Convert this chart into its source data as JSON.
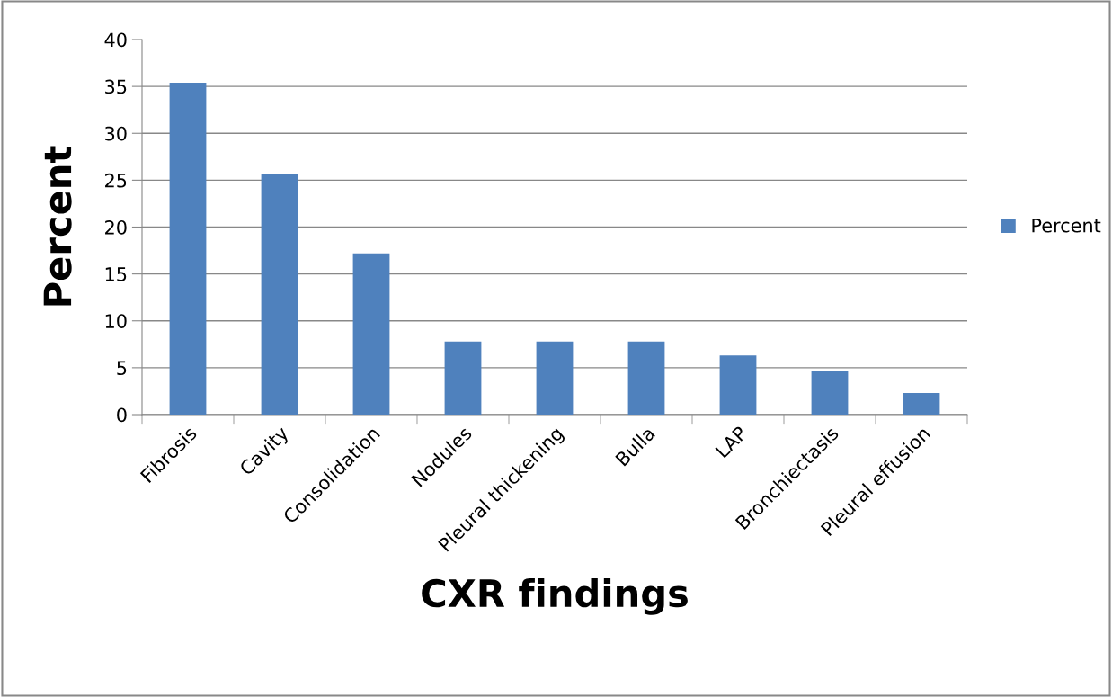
{
  "chart_data": {
    "type": "bar",
    "xlabel": "CXR findings",
    "ylabel": "Percent",
    "categories": [
      "Fibrosis",
      "Cavity",
      "Consolidation",
      "Nodules",
      "Pleural thickening",
      "Bulla",
      "LAP",
      "Bronchiectasis",
      "Pleural effusion"
    ],
    "series": [
      {
        "name": "Percent",
        "color": "#4f81bd",
        "values": [
          35.4,
          25.7,
          17.2,
          7.8,
          7.8,
          7.8,
          6.3,
          4.7,
          2.3
        ]
      }
    ],
    "ylim": [
      0,
      40
    ],
    "yticks": [
      0,
      5,
      10,
      15,
      20,
      25,
      30,
      35,
      40
    ],
    "grid": "y",
    "legend": "right"
  }
}
